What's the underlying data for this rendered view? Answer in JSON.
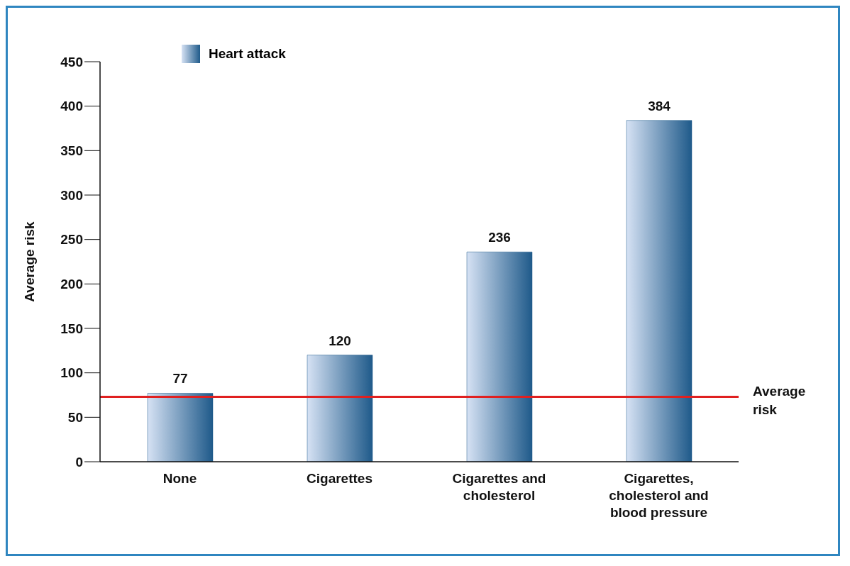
{
  "chart_data": {
    "type": "bar",
    "categories": [
      "None",
      "Cigarettes",
      "Cigarettes and cholesterol",
      "Cigarettes, cholesterol and blood pressure"
    ],
    "series": [
      {
        "name": "Heart attack",
        "color": "#1f5a8a",
        "values": [
          77,
          120,
          236,
          384
        ]
      }
    ],
    "ylabel": "Average risk",
    "ylim": [
      0,
      450
    ],
    "yticks": [
      0,
      50,
      100,
      150,
      200,
      250,
      300,
      350,
      400,
      450
    ],
    "ref_lines": [
      {
        "axis": "y",
        "value": 73,
        "label": "Average risk",
        "color": "#e02020"
      }
    ],
    "data_labels": true,
    "legend": "top left",
    "grid": false
  }
}
